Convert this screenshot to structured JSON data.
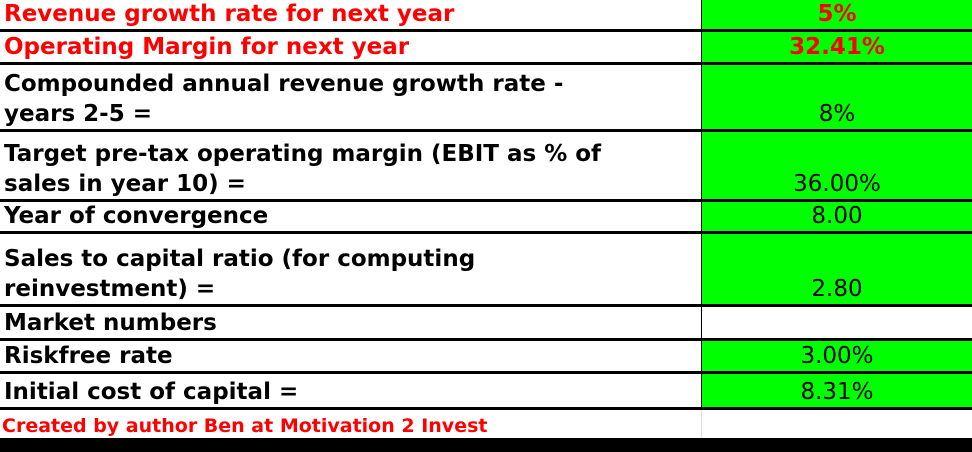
{
  "rows": [
    {
      "label": "Revenue growth rate for next year",
      "value": "5%"
    },
    {
      "label": "Operating Margin for next year",
      "value": "32.41%"
    },
    {
      "label": "Compounded annual revenue growth rate -\nyears 2-5 =",
      "value": "8%"
    },
    {
      "label": "Target pre-tax operating margin (EBIT as % of\nsales in year 10) =",
      "value": "36.00%"
    },
    {
      "label": "Year of convergence",
      "value": "8.00"
    },
    {
      "label": "Sales to capital ratio  (for computing\nreinvestment) =",
      "value": "2.80"
    },
    {
      "label": "Market numbers",
      "value": ""
    },
    {
      "label": "Riskfree rate",
      "value": "3.00%"
    },
    {
      "label": "Initial cost of capital =",
      "value": "8.31%"
    }
  ],
  "footer": {
    "text": "Created by author Ben at Motivation 2 Invest"
  },
  "colors": {
    "highlight": "#00ff00",
    "accent_text": "#ff0000",
    "text": "#000000"
  }
}
